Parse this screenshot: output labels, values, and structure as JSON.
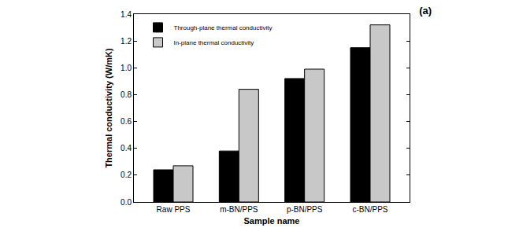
{
  "chart_data": {
    "type": "bar",
    "title": "(a)",
    "x_label": "Sample name",
    "y_label": "Thermal conductivity (W/mK)",
    "categories": [
      "Raw PPS",
      "m-BN/PPS",
      "p-BN/PPS",
      "c-BN/PPS"
    ],
    "series": [
      {
        "name": "Through-plane thermal conductivity",
        "color": "#000000",
        "values": [
          0.24,
          0.38,
          0.92,
          1.15
        ]
      },
      {
        "name": "In-plane thermal conductivity",
        "color": "#c8c8c8",
        "values": [
          0.27,
          0.84,
          0.99,
          1.32
        ]
      }
    ],
    "ylim": [
      0,
      1.4
    ],
    "yticks": [
      {
        "value": 0,
        "label": "0.0"
      },
      0.2,
      0.4,
      0.6,
      0.8,
      {
        "value": 1,
        "label": "1.0"
      },
      1.2,
      1.4
    ],
    "grid": false,
    "legend": "upper left"
  }
}
